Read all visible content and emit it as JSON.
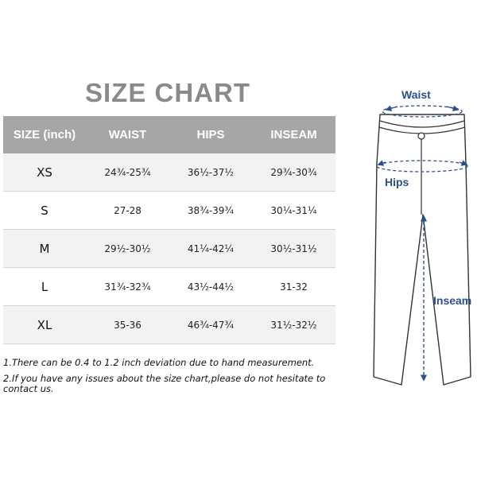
{
  "title": "SIZE CHART",
  "table": {
    "headers": [
      "SIZE (inch)",
      "WAIST",
      "HIPS",
      "INSEAM"
    ],
    "rows": [
      {
        "size": "XS",
        "waist": "24¾-25¾",
        "hips": "36½-37½",
        "inseam": "29¾-30¾"
      },
      {
        "size": "S",
        "waist": "27-28",
        "hips": "38¾-39¾",
        "inseam": "30¼-31¼"
      },
      {
        "size": "M",
        "waist": "29½-30½",
        "hips": "41¼-42¼",
        "inseam": "30½-31½"
      },
      {
        "size": "L",
        "waist": "31¾-32¾",
        "hips": "43½-44½",
        "inseam": "31-32"
      },
      {
        "size": "XL",
        "waist": "35-36",
        "hips": "46¾-47¾",
        "inseam": "31½-32½"
      }
    ]
  },
  "notes": [
    "1.There can be 0.4 to 1.2 inch deviation due to hand measurement.",
    "2.If you have any issues about the size chart,please do not hesitate to contact us."
  ],
  "diagram": {
    "waist_label": "Waist",
    "hips_label": "Hips",
    "inseam_label": "Inseam"
  },
  "colors": {
    "header_bg": "#a6a6a6",
    "title_gray": "#8a8a8a",
    "measure_blue": "#2c4f8c"
  }
}
